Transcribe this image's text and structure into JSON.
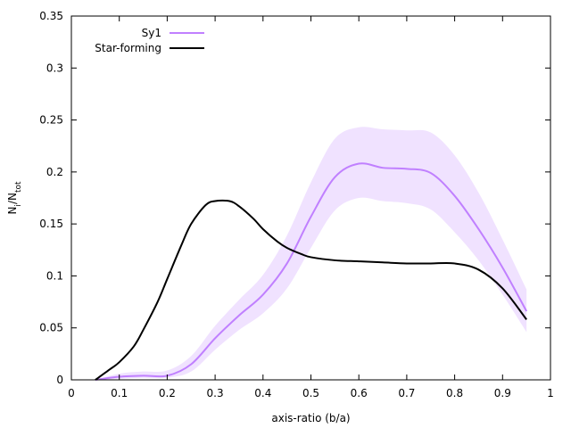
{
  "chart_data": {
    "type": "line",
    "title": "",
    "xlabel": "axis-ratio (b/a)",
    "ylabel": {
      "base": "N",
      "sub1": "i",
      "slash": "/N",
      "sub2": "tot"
    },
    "xlim": [
      0,
      1
    ],
    "ylim": [
      0,
      0.35
    ],
    "x_ticks": [
      {
        "value": 0,
        "label": "0"
      },
      {
        "value": 0.1,
        "label": "0.1"
      },
      {
        "value": 0.2,
        "label": "0.2"
      },
      {
        "value": 0.3,
        "label": "0.3"
      },
      {
        "value": 0.4,
        "label": "0.4"
      },
      {
        "value": 0.5,
        "label": "0.5"
      },
      {
        "value": 0.6,
        "label": "0.6"
      },
      {
        "value": 0.7,
        "label": "0.7"
      },
      {
        "value": 0.8,
        "label": "0.8"
      },
      {
        "value": 0.9,
        "label": "0.9"
      },
      {
        "value": 1,
        "label": "1"
      }
    ],
    "y_ticks": [
      {
        "value": 0,
        "label": "0"
      },
      {
        "value": 0.05,
        "label": "0.05"
      },
      {
        "value": 0.1,
        "label": "0.1"
      },
      {
        "value": 0.15,
        "label": "0.15"
      },
      {
        "value": 0.2,
        "label": "0.2"
      },
      {
        "value": 0.25,
        "label": "0.25"
      },
      {
        "value": 0.3,
        "label": "0.3"
      },
      {
        "value": 0.35,
        "label": "0.35"
      }
    ],
    "grid": false,
    "legend_position": "top-left",
    "series": [
      {
        "name": "Sy1",
        "color": "#c080ff",
        "band_color": "#f0e2ff",
        "x": [
          0.05,
          0.1,
          0.15,
          0.2,
          0.25,
          0.3,
          0.35,
          0.4,
          0.45,
          0.5,
          0.55,
          0.6,
          0.65,
          0.7,
          0.75,
          0.8,
          0.85,
          0.9,
          0.95
        ],
        "y": [
          0.0,
          0.003,
          0.004,
          0.004,
          0.015,
          0.04,
          0.062,
          0.082,
          0.112,
          0.157,
          0.195,
          0.208,
          0.204,
          0.203,
          0.199,
          0.177,
          0.145,
          0.108,
          0.066
        ],
        "upper": [
          0.0,
          0.006,
          0.008,
          0.009,
          0.023,
          0.052,
          0.077,
          0.101,
          0.139,
          0.19,
          0.232,
          0.243,
          0.241,
          0.24,
          0.238,
          0.216,
          0.18,
          0.135,
          0.087
        ],
        "lower": [
          0.0,
          0.001,
          0.002,
          0.002,
          0.008,
          0.029,
          0.048,
          0.064,
          0.088,
          0.127,
          0.163,
          0.175,
          0.172,
          0.17,
          0.164,
          0.142,
          0.115,
          0.082,
          0.046
        ]
      },
      {
        "name": "Star-forming",
        "color": "#000000",
        "x": [
          0.05,
          0.08,
          0.1,
          0.13,
          0.15,
          0.18,
          0.2,
          0.23,
          0.25,
          0.28,
          0.3,
          0.33,
          0.35,
          0.38,
          0.4,
          0.43,
          0.45,
          0.48,
          0.5,
          0.55,
          0.6,
          0.65,
          0.7,
          0.75,
          0.8,
          0.85,
          0.9,
          0.95
        ],
        "y": [
          0.0,
          0.01,
          0.017,
          0.032,
          0.048,
          0.075,
          0.097,
          0.13,
          0.15,
          0.168,
          0.172,
          0.172,
          0.167,
          0.155,
          0.145,
          0.133,
          0.127,
          0.121,
          0.118,
          0.115,
          0.114,
          0.113,
          0.112,
          0.112,
          0.112,
          0.106,
          0.088,
          0.058
        ]
      }
    ]
  }
}
